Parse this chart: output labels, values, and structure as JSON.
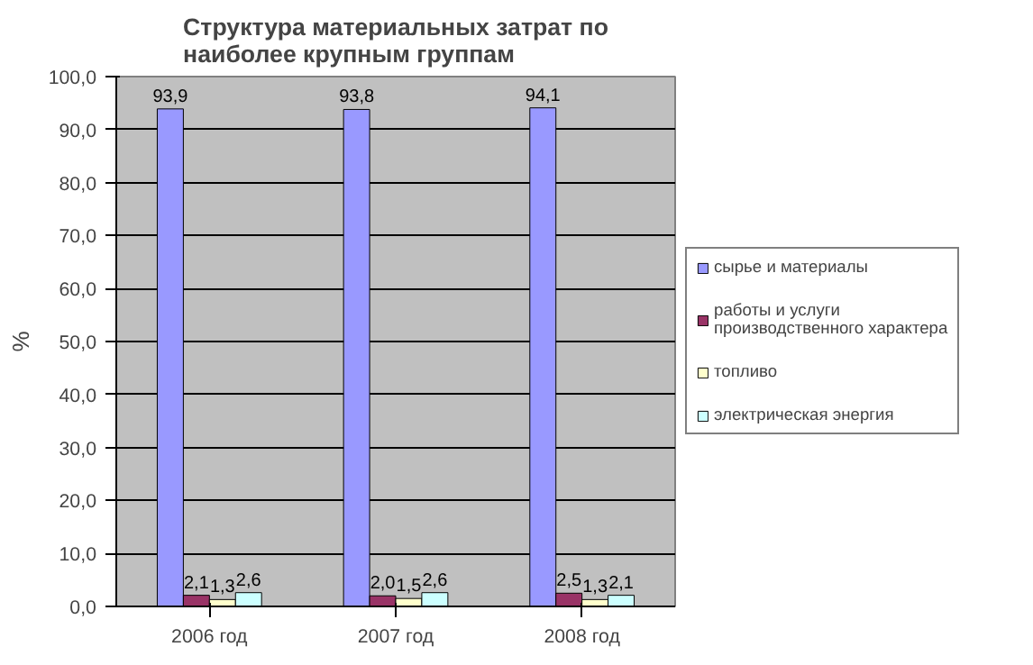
{
  "chart_data": {
    "type": "bar",
    "title": "Структура материальных затрат по наиболее крупным группам",
    "ylabel": "%",
    "categories": [
      "2006 год",
      "2007 год",
      "2008 год"
    ],
    "series": [
      {
        "name": "сырье и материалы",
        "color": "#9999ff",
        "values": [
          93.9,
          93.8,
          94.1
        ],
        "value_labels": [
          "93,9",
          "93,8",
          "94,1"
        ]
      },
      {
        "name": "работы и услуги производственного характера",
        "color": "#993366",
        "values": [
          2.1,
          2.0,
          2.5
        ],
        "value_labels": [
          "2,1",
          "2,0",
          "2,5"
        ]
      },
      {
        "name": "топливо",
        "color": "#ffffcc",
        "values": [
          1.3,
          1.5,
          1.3
        ],
        "value_labels": [
          "1,3",
          "1,5",
          "1,3"
        ]
      },
      {
        "name": "электрическая энергия",
        "color": "#ccffff",
        "values": [
          2.6,
          2.6,
          2.1
        ],
        "value_labels": [
          "2,6",
          "2,6",
          "2,1"
        ]
      }
    ],
    "ylim": [
      0,
      100
    ],
    "yticks": [
      {
        "value": 0,
        "label": "0,0"
      },
      {
        "value": 10,
        "label": "10,0"
      },
      {
        "value": 20,
        "label": "20,0"
      },
      {
        "value": 30,
        "label": "30,0"
      },
      {
        "value": 40,
        "label": "40,0"
      },
      {
        "value": 50,
        "label": "50,0"
      },
      {
        "value": 60,
        "label": "60,0"
      },
      {
        "value": 70,
        "label": "70,0"
      },
      {
        "value": 80,
        "label": "80,0"
      },
      {
        "value": 90,
        "label": "90,0"
      },
      {
        "value": 100,
        "label": "100,0"
      }
    ],
    "grid": "y",
    "legend": "right"
  }
}
